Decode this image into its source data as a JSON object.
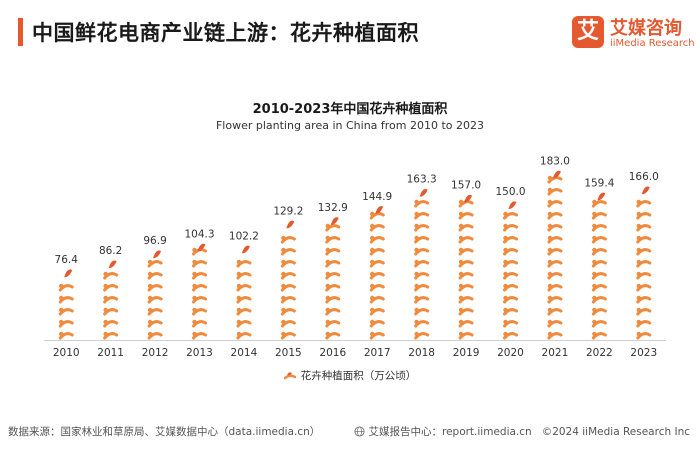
{
  "header": {
    "title": "中国鲜花电商产业链上游：花卉种植面积",
    "logo_mark": "艾",
    "logo_cn": "艾媒咨询",
    "logo_en": "iiMedia Research"
  },
  "colors": {
    "accent": "#e4592f",
    "bar": "#f08a3c",
    "leaf": "#e4592f"
  },
  "chart_data": {
    "type": "bar",
    "title": "2010-2023年中国花卉种植面积",
    "subtitle": "Flower planting area in China from 2010 to 2023",
    "categories": [
      "2010",
      "2011",
      "2012",
      "2013",
      "2014",
      "2015",
      "2016",
      "2017",
      "2018",
      "2019",
      "2020",
      "2021",
      "2022",
      "2023"
    ],
    "values": [
      76.4,
      86.2,
      96.9,
      104.3,
      102.2,
      129.2,
      132.9,
      144.9,
      163.3,
      157.0,
      150.0,
      183.0,
      159.4,
      166.0
    ],
    "value_labels": [
      "76.4",
      "86.2",
      "96.9",
      "104.3",
      "102.2",
      "129.2",
      "132.9",
      "144.9",
      "163.3",
      "157.0",
      "150.0",
      "183.0",
      "159.4",
      "166.0"
    ],
    "series_name": "花卉种植面积（万公顷）",
    "ylim": [
      0,
      190
    ],
    "grid": false,
    "legend": "bottom-center"
  },
  "footer": {
    "source": "数据来源：国家林业和草原局、艾媒数据中心（data.iimedia.cn）",
    "report_center": "艾媒报告中心：report.iimedia.cn",
    "copyright": "©2024  iiMedia Research Inc"
  }
}
